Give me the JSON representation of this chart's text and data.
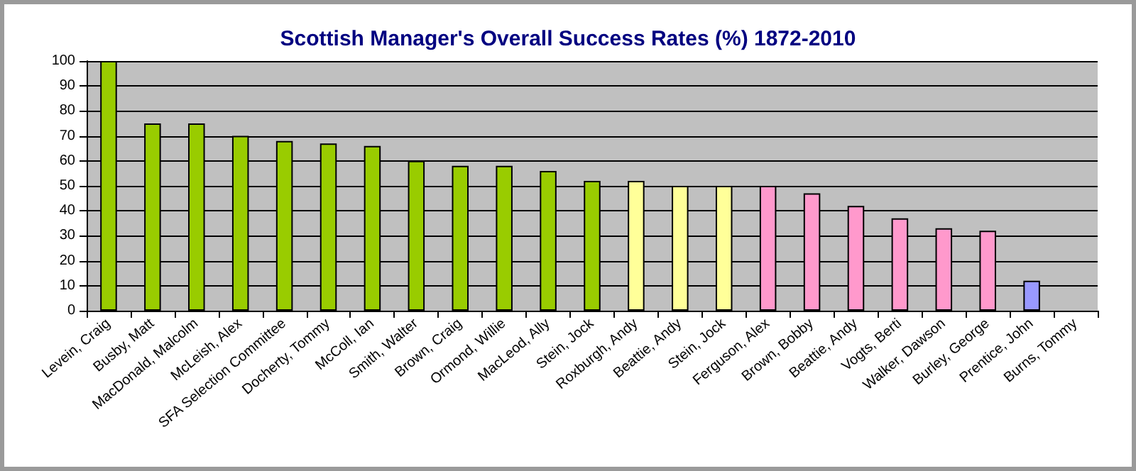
{
  "chart_data": {
    "type": "bar",
    "title": "Scottish Manager's Overall Success Rates (%) 1872-2010",
    "categories": [
      "Levein, Craig",
      "Busby, Matt",
      "MacDonald, Malcolm",
      "McLeish, Alex",
      "SFA Selection Committee",
      "Docherty, Tommy",
      "McColl, Ian",
      "Smith, Walter",
      "Brown, Craig",
      "Ormond, Willie",
      "MacLeod, Ally",
      "Stein, Jock",
      "Roxburgh, Andy",
      "Beattie, Andy",
      "Stein, Jock",
      "Ferguson, Alex",
      "Brown, Bobby",
      "Beattie, Andy",
      "Vogts, Berti",
      "Walker, Dawson",
      "Burley, George",
      "Prentice, John",
      "Burns, Tommy"
    ],
    "values": [
      100,
      75,
      75,
      70,
      68,
      67,
      66,
      60,
      58,
      58,
      56,
      52,
      52,
      50,
      50,
      50,
      47,
      42,
      37,
      33,
      32,
      12,
      0
    ],
    "colors": [
      "#99cc00",
      "#99cc00",
      "#99cc00",
      "#99cc00",
      "#99cc00",
      "#99cc00",
      "#99cc00",
      "#99cc00",
      "#99cc00",
      "#99cc00",
      "#99cc00",
      "#99cc00",
      "#ffff99",
      "#ffff99",
      "#ffff99",
      "#ff99cc",
      "#ff99cc",
      "#ff99cc",
      "#ff99cc",
      "#ff99cc",
      "#ff99cc",
      "#9999ff",
      "#9999ff"
    ],
    "ylim": [
      0,
      100
    ],
    "yticks": [
      0,
      10,
      20,
      30,
      40,
      50,
      60,
      70,
      80,
      90,
      100
    ],
    "grid": "y"
  }
}
